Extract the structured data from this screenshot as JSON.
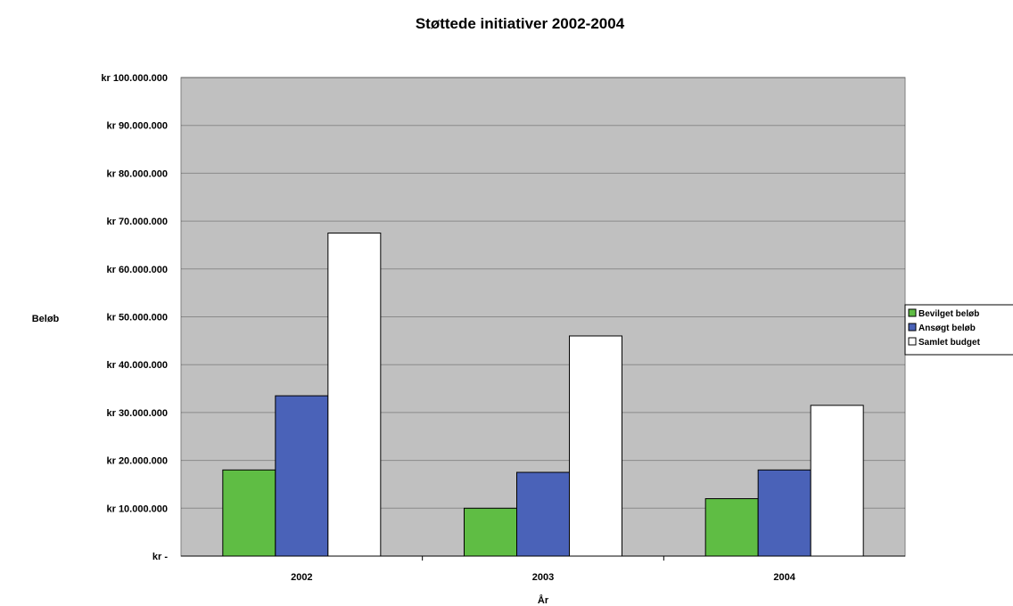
{
  "chart_data": {
    "type": "bar",
    "title": "Støttede initiativer 2002-2004",
    "xlabel": "År",
    "ylabel": "Beløb",
    "categories": [
      "2002",
      "2003",
      "2004"
    ],
    "ylim": [
      0,
      100000000
    ],
    "yticks": [
      0,
      10000000,
      20000000,
      30000000,
      40000000,
      50000000,
      60000000,
      70000000,
      80000000,
      90000000,
      100000000
    ],
    "ytick_labels": [
      "kr -",
      "kr 10.000.000",
      "kr 20.000.000",
      "kr 30.000.000",
      "kr 40.000.000",
      "kr 50.000.000",
      "kr 60.000.000",
      "kr 70.000.000",
      "kr 80.000.000",
      "kr 90.000.000",
      "kr 100.000.000"
    ],
    "grid": true,
    "legend_position": "right",
    "series": [
      {
        "name": "Bevilget beløb",
        "color": "#5fbd44",
        "values": [
          18000000,
          10000000,
          12000000
        ]
      },
      {
        "name": "Ansøgt beløb",
        "color": "#4a62b8",
        "values": [
          33500000,
          17500000,
          18000000
        ]
      },
      {
        "name": "Samlet budget",
        "color": "#ffffff",
        "values": [
          67500000,
          46000000,
          31500000
        ]
      }
    ]
  }
}
